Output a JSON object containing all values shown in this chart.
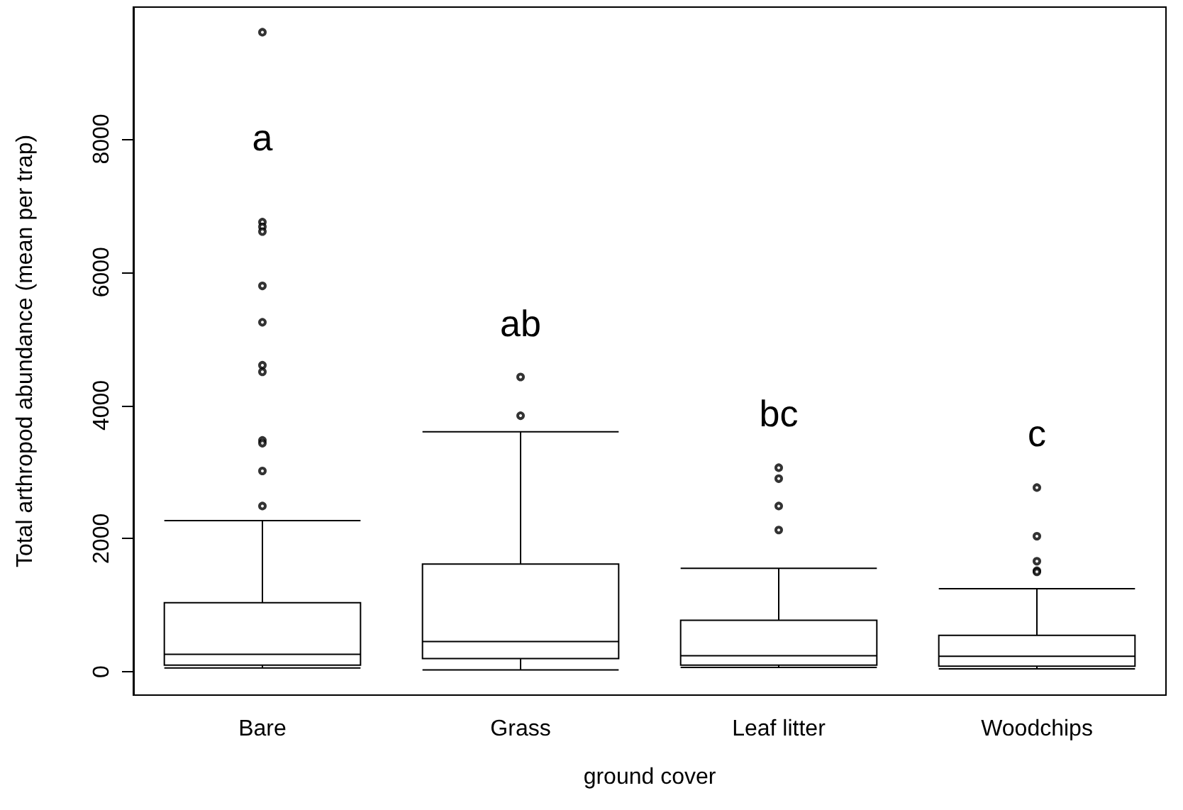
{
  "chart_data": {
    "type": "box",
    "xlabel": "ground cover",
    "ylabel": "Total arthropod abundance (mean per trap)",
    "categories": [
      "Bare",
      "Grass",
      "Leaf litter",
      "Woodchips"
    ],
    "boxes": [
      {
        "low": 57,
        "q1": 100,
        "median": 262,
        "q3": 1036,
        "high": 2270,
        "outliers": [
          9603,
          6752,
          6681,
          6610,
          5794,
          5248,
          4603,
          4504,
          3475,
          3432,
          3015,
          2489
        ]
      },
      {
        "low": 28,
        "q1": 199,
        "median": 454,
        "q3": 1617,
        "high": 3603,
        "outliers": [
          4426,
          3845
        ]
      },
      {
        "low": 64,
        "q1": 100,
        "median": 241,
        "q3": 773,
        "high": 1553,
        "outliers": [
          3064,
          2900,
          2489,
          2128
        ]
      },
      {
        "low": 43,
        "q1": 85,
        "median": 234,
        "q3": 546,
        "high": 1248,
        "outliers": [
          2766,
          2036,
          1660,
          1518,
          1500
        ]
      }
    ],
    "color": "#000000",
    "ylim": [
      -350,
      9980
    ],
    "yticks": [
      0,
      2000,
      4000,
      6000,
      8000
    ],
    "annotations": [
      "a",
      "ab",
      "bc",
      "c"
    ],
    "grid": false
  }
}
